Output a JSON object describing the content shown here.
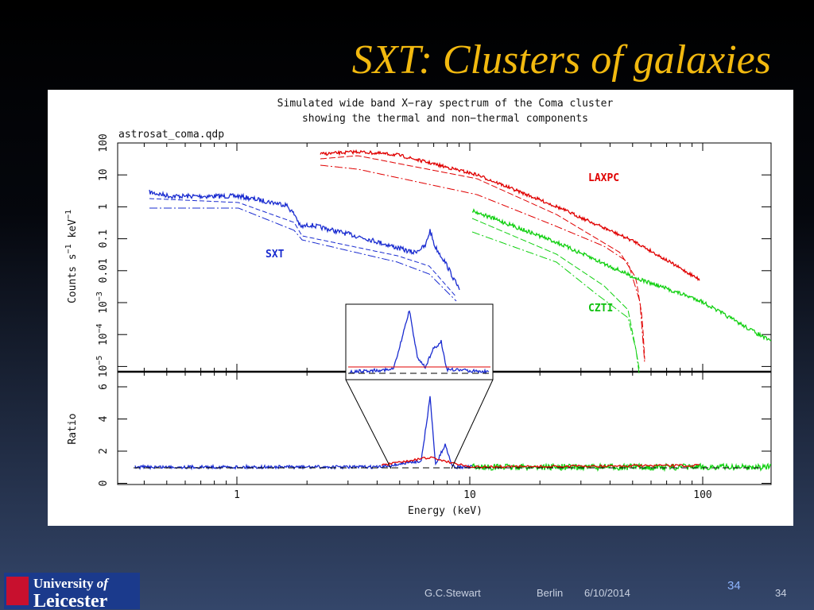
{
  "slide": {
    "title": "SXT: Clusters of galaxies",
    "figure": {
      "title_lines": [
        "Simulated wide band X−ray spectrum of the Coma cluster",
        "showing the thermal and non−thermal components"
      ],
      "file_label": "astrosat_coma.qdp",
      "y_label_top": {
        "text": "Counts s",
        "sup1": "−1",
        "mid": " keV",
        "sup2": "−1"
      },
      "y_label_bottom": "Ratio",
      "x_label": "Energy (keV)",
      "x_ticks": [
        "1",
        "10",
        "100"
      ],
      "y_ticks_top": [
        {
          "base": "100"
        },
        {
          "base": "10"
        },
        {
          "base": "1"
        },
        {
          "base": "0.1"
        },
        {
          "base": "0.01"
        },
        {
          "base": "10",
          "exp": "−3"
        },
        {
          "base": "10",
          "exp": "−4"
        },
        {
          "base": "10",
          "exp": "−5"
        }
      ],
      "y_ticks_bottom": [
        "6",
        "4",
        "2",
        "0"
      ],
      "series_labels": {
        "laxpc": "LAXPC",
        "sxt": "SXT",
        "czti": "CZTI"
      }
    },
    "footer": {
      "logo_line1": "University",
      "logo_of": "of",
      "logo_line2": "Leicester",
      "author": "G.C.Stewart",
      "place": "Berlin",
      "date": "6/10/2014",
      "slide_number": "34",
      "page_number": "34"
    }
  }
}
